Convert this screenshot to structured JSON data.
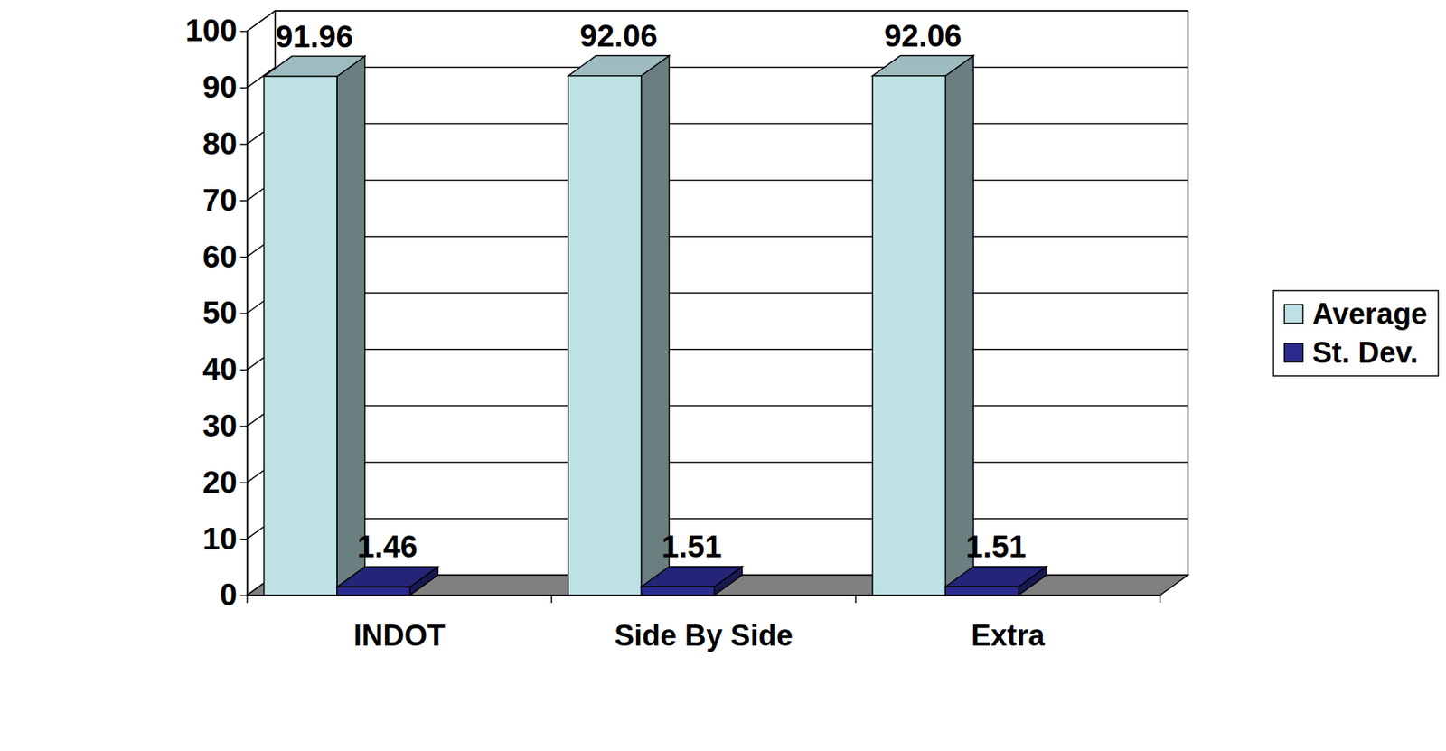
{
  "chart_data": {
    "type": "bar",
    "categories": [
      "INDOT",
      "Side By Side",
      "Extra"
    ],
    "series": [
      {
        "name": "Average",
        "color": "#bde1e4",
        "values": [
          91.96,
          92.06,
          92.06
        ]
      },
      {
        "name": "St. Dev.",
        "color": "#2b2b8f",
        "values": [
          1.46,
          1.51,
          1.51
        ]
      }
    ],
    "ylim": [
      0,
      100
    ],
    "yticks": [
      0,
      10,
      20,
      30,
      40,
      50,
      60,
      70,
      80,
      90,
      100
    ],
    "grid": true,
    "legend": "right",
    "data_labels": true
  }
}
